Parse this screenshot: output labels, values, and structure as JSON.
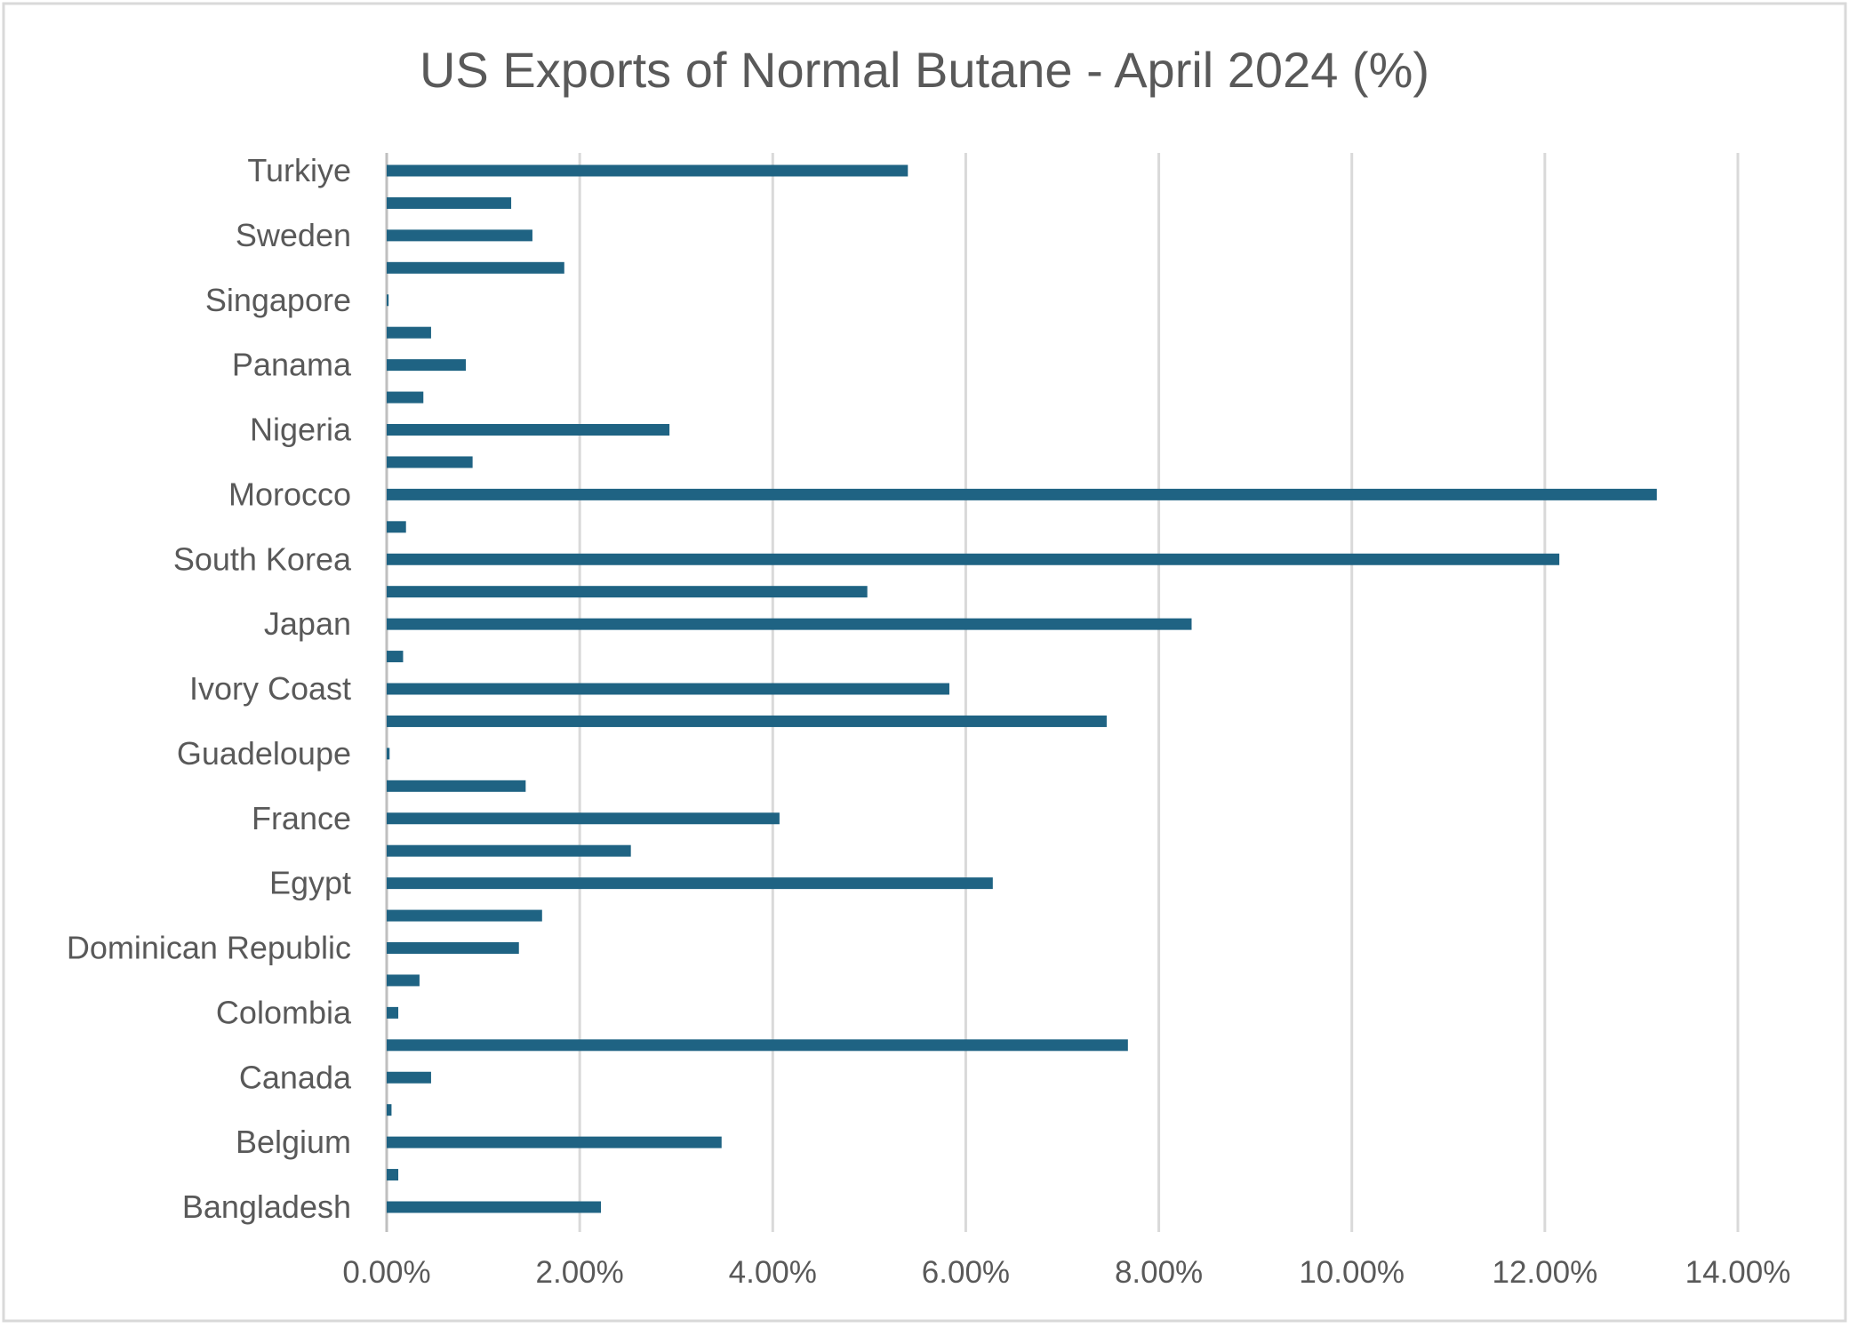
{
  "chart_data": {
    "type": "bar",
    "orientation": "horizontal",
    "title": "US Exports of Normal Butane - April 2024 (%)",
    "xlabel": "",
    "ylabel": "",
    "xlim": [
      0,
      14
    ],
    "x_ticks": [
      "0.00%",
      "2.00%",
      "4.00%",
      "6.00%",
      "8.00%",
      "10.00%",
      "12.00%",
      "14.00%"
    ],
    "grid": "vertical",
    "legend": "none",
    "bar_color": "#1f6383",
    "categories": [
      "Turkiye",
      "",
      "Sweden",
      "",
      "Singapore",
      "",
      "Panama",
      "",
      "Nigeria",
      "",
      "Morocco",
      "",
      "South Korea",
      "",
      "Japan",
      "",
      "Ivory Coast",
      "",
      "Guadeloupe",
      "",
      "France",
      "",
      "Egypt",
      "",
      "Dominican Republic",
      "",
      "Colombia",
      "",
      "Canada",
      "",
      "Belgium",
      "",
      "Bangladesh"
    ],
    "values": [
      5.4,
      1.29,
      1.51,
      1.84,
      0.02,
      0.46,
      0.82,
      0.38,
      2.93,
      0.89,
      13.16,
      0.2,
      12.15,
      4.98,
      8.34,
      0.17,
      5.83,
      7.46,
      0.03,
      1.44,
      4.07,
      2.53,
      6.28,
      1.61,
      1.37,
      0.34,
      0.12,
      7.68,
      0.46,
      0.05,
      3.47,
      0.12,
      2.22
    ]
  }
}
